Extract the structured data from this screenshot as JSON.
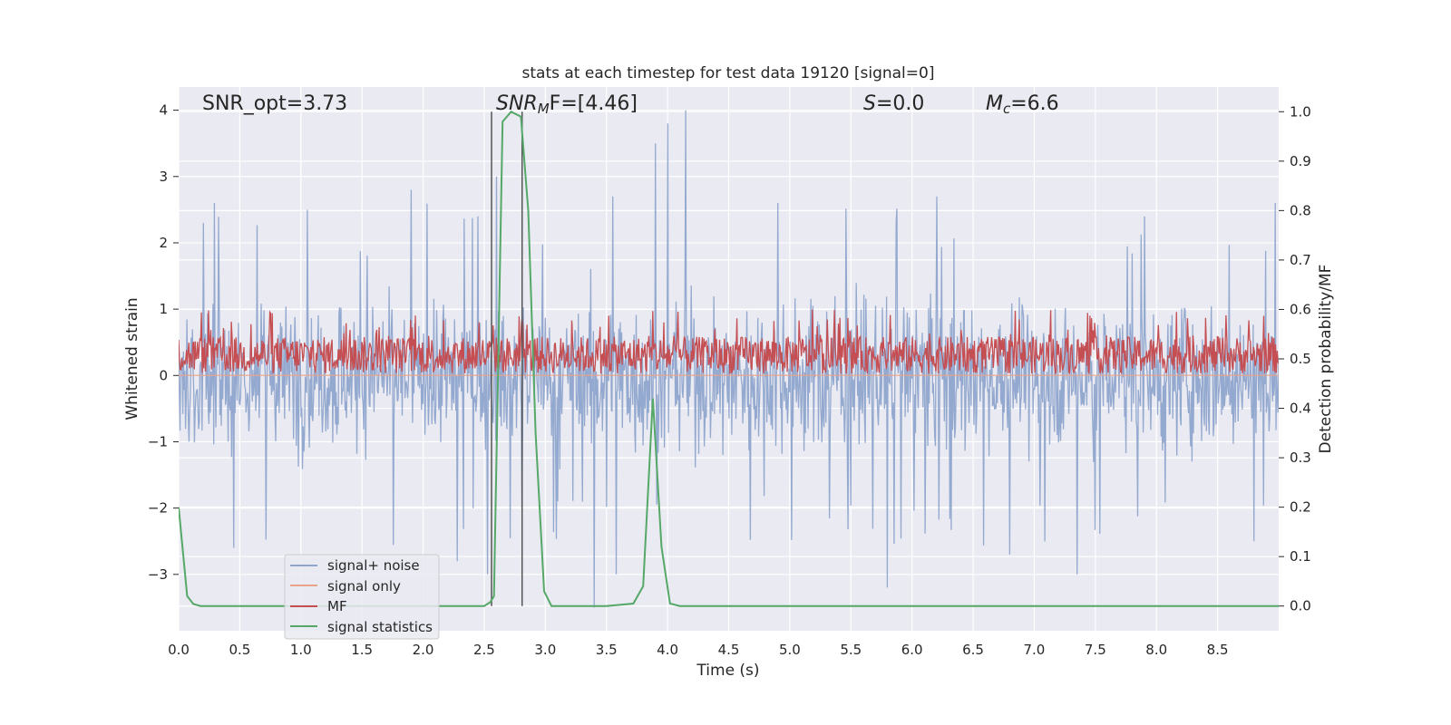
{
  "chart_data": {
    "type": "line",
    "title": "stats at each timestep for test data 19120 [signal=0]",
    "xlabel": "Time (s)",
    "ylabel": "Whitened strain",
    "y2label": "Detection probability/MF",
    "xlim": [
      0.0,
      9.0
    ],
    "ylim": [
      -3.85,
      4.35
    ],
    "y2lim": [
      -0.05,
      1.05
    ],
    "xticks": [
      "0.0",
      "0.5",
      "1.0",
      "1.5",
      "2.0",
      "2.5",
      "3.0",
      "3.5",
      "4.0",
      "4.5",
      "5.0",
      "5.5",
      "6.0",
      "6.5",
      "7.0",
      "7.5",
      "8.0",
      "8.5"
    ],
    "yticks": [
      "4",
      "3",
      "2",
      "1",
      "0",
      "−1",
      "−2",
      "−3"
    ],
    "y2ticks": [
      "1.0",
      "0.9",
      "0.8",
      "0.7",
      "0.6",
      "0.5",
      "0.4",
      "0.3",
      "0.2",
      "0.1",
      "0.0"
    ],
    "grid": true,
    "legend_position": "lower-left",
    "annotations": {
      "snr_opt": "SNR_opt=3.73",
      "snr_mf_base": "SNR",
      "snr_mf_sub": "M",
      "snr_mf_rest": "F=[4.46]",
      "s_label": "S",
      "s_value": "=0.0",
      "mc_base": "M",
      "mc_sub": "c",
      "mc_value": "=6.6"
    },
    "vertical_lines_x": [
      2.56,
      2.81
    ],
    "series": [
      {
        "name": "signal+ noise",
        "color": "#8fa5cc",
        "axis": "left",
        "description_level": "whitened noise, approx ±1.3 band with peaks to ±3",
        "peaks": [
          {
            "x": 0.2,
            "y": 2.3
          },
          {
            "x": 0.29,
            "y": 2.6
          },
          {
            "x": 0.45,
            "y": -2.6
          },
          {
            "x": 1.05,
            "y": 2.5
          },
          {
            "x": 1.9,
            "y": 2.8
          },
          {
            "x": 2.28,
            "y": -2.8
          },
          {
            "x": 2.45,
            "y": 2.4
          },
          {
            "x": 2.53,
            "y": -3.0
          },
          {
            "x": 2.6,
            "y": 3.0
          },
          {
            "x": 3.4,
            "y": -3.5
          },
          {
            "x": 3.55,
            "y": 2.7
          },
          {
            "x": 3.58,
            "y": -3.0
          },
          {
            "x": 3.9,
            "y": 3.5
          },
          {
            "x": 4.0,
            "y": 3.8
          },
          {
            "x": 4.15,
            "y": 4.0
          },
          {
            "x": 4.9,
            "y": 2.6
          },
          {
            "x": 5.8,
            "y": -3.2
          },
          {
            "x": 6.2,
            "y": 2.7
          },
          {
            "x": 6.8,
            "y": -2.7
          },
          {
            "x": 7.35,
            "y": -3.0
          },
          {
            "x": 7.9,
            "y": 2.4
          },
          {
            "x": 8.8,
            "y": -2.5
          },
          {
            "x": 8.97,
            "y": 2.6
          }
        ]
      },
      {
        "name": "signal only",
        "color": "#e8a38a",
        "axis": "left",
        "values_y": 0.0
      },
      {
        "name": "MF",
        "color": "#c44e52",
        "axis": "right",
        "range_y2": [
          0.47,
          0.6
        ]
      },
      {
        "name": "signal statistics",
        "color": "#55a868",
        "axis": "right",
        "x": [
          0.0,
          0.07,
          0.12,
          0.18,
          0.3,
          0.5,
          1.0,
          1.5,
          2.0,
          2.5,
          2.55,
          2.58,
          2.65,
          2.72,
          2.8,
          2.86,
          2.92,
          2.99,
          3.05,
          3.2,
          3.5,
          3.72,
          3.8,
          3.88,
          3.95,
          4.02,
          4.1,
          4.5,
          5.0,
          6.0,
          7.0,
          8.0,
          9.0
        ],
        "values": [
          0.2,
          0.02,
          0.004,
          0.0,
          0.0,
          0.0,
          0.0,
          0.0,
          0.0,
          0.0,
          0.008,
          0.02,
          0.98,
          1.0,
          0.99,
          0.8,
          0.35,
          0.03,
          0.0,
          0.0,
          0.0,
          0.005,
          0.04,
          0.42,
          0.12,
          0.005,
          0.0,
          0.0,
          0.0,
          0.0,
          0.0,
          0.0,
          0.0
        ]
      }
    ]
  }
}
